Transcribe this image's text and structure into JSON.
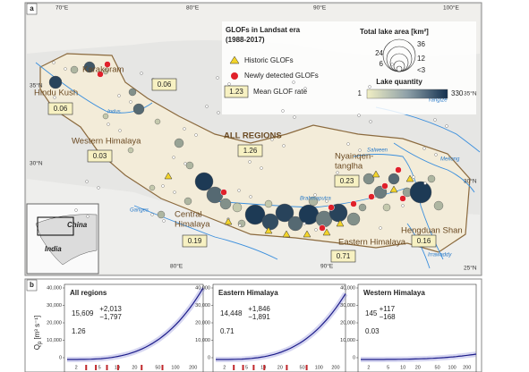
{
  "panel_labels": [
    "a",
    "b"
  ],
  "map": {
    "coords": {
      "top": [
        "70°E",
        "80°E",
        "90°E",
        "100°E"
      ],
      "bottom": [
        "80°E",
        "90°E"
      ],
      "left": [
        "35°N",
        "30°N"
      ],
      "right": [
        "35°N",
        "30°N",
        "25°N"
      ]
    },
    "regions": [
      {
        "lines": [
          "Karakoram"
        ],
        "rate": "0.06"
      },
      {
        "lines": [
          "Hindu Kush"
        ],
        "rate": "0.06"
      },
      {
        "lines": [
          "Western Himalaya"
        ],
        "rate": "0.03"
      },
      {
        "lines": [
          "ALL REGIONS"
        ],
        "rate": "1.26"
      },
      {
        "lines": [
          "Nyainqen-",
          "tanglha"
        ],
        "rate": "0.23"
      },
      {
        "lines": [
          "Central",
          "Himalaya"
        ],
        "rate": "0.19"
      },
      {
        "lines": [
          "Eastern Himalaya"
        ],
        "rate": "0.71"
      },
      {
        "lines": [
          "Hengduan Shan"
        ],
        "rate": "0.16"
      }
    ],
    "rivers": [
      "Indus",
      "Ganges",
      "Brahmaputra",
      "Salween",
      "Yangtze",
      "Mekong",
      "Irrawaddy"
    ],
    "inset": [
      "China",
      "India"
    ],
    "legend": {
      "title": [
        "GLOFs in Landsat era",
        "(1988-2017)"
      ],
      "historic": "Historic GLOFs",
      "new": "Newly detected GLOFs",
      "rate_example": "1.23",
      "rate_label": "Mean GLOF rate",
      "area_title": "Total lake area [km²]",
      "area_sizes": [
        "36",
        "24",
        "12",
        "6",
        "<3"
      ],
      "quantity_title": "Lake quantity",
      "quantity_range": [
        "1",
        "330"
      ]
    }
  },
  "panels": [
    {
      "title": "All regions",
      "value": "15,609",
      "plus": "+2,013",
      "minus": "−1,797",
      "rate": "1.26"
    },
    {
      "title": "Eastern Himalaya",
      "value": "14,448",
      "plus": "+1,846",
      "minus": "−1,891",
      "rate": "0.71"
    },
    {
      "title": "Western Himalaya",
      "value": "145",
      "plus": "+117",
      "minus": "−168",
      "rate": "0.03"
    }
  ],
  "y_ticks": [
    "0",
    "10,000",
    "20,000",
    "30,000",
    "40,000"
  ],
  "x_ticks": [
    "2",
    "5",
    "10",
    "20",
    "50",
    "100",
    "200"
  ],
  "y_label": {
    "main": "Q",
    "sub": "p",
    "unit": "[m³ s⁻¹]"
  }
}
